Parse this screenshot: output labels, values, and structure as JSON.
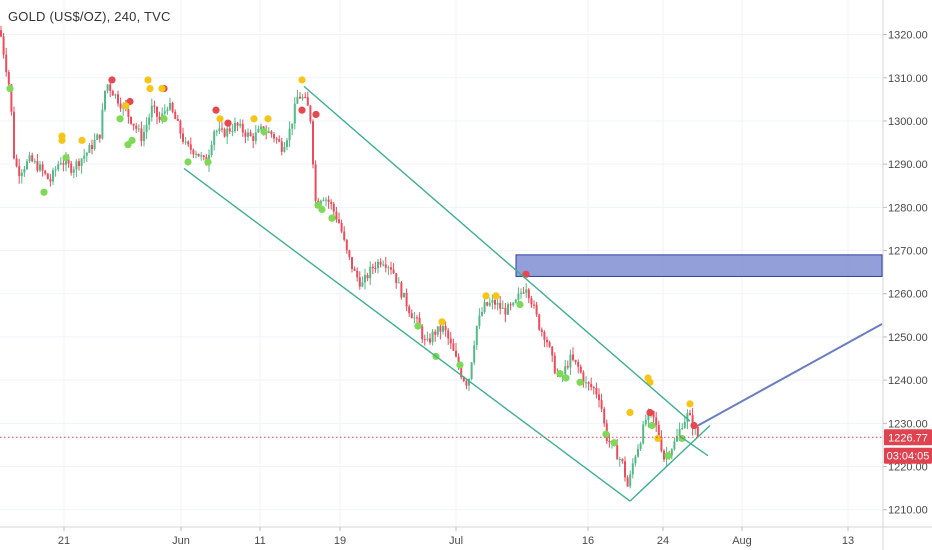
{
  "header": {
    "title": "GOLD (US$/OZ), 240, TVC"
  },
  "colors": {
    "up": "#53b987",
    "down": "#eb4d5c",
    "channel": "#3fb08f",
    "projection": "#6a7dc2",
    "zone_fill": "#7f8ed1",
    "zone_stroke": "#2f3f9f",
    "price_line": "#e0424f",
    "dot_green": "#7ed957",
    "dot_red": "#e5484d",
    "dot_yellow": "#f5c518",
    "grid": "#f0f3fa",
    "axis_text": "#4a4a4a"
  },
  "chart_data": {
    "type": "candlestick",
    "symbol": "GOLD (US$/OZ)",
    "interval": "240",
    "source": "TVC",
    "ylim": [
      1206,
      1328
    ],
    "y_ticks": [
      1210,
      1220,
      1230,
      1240,
      1250,
      1260,
      1270,
      1280,
      1290,
      1300,
      1310,
      1320
    ],
    "y_tick_labels": [
      "1210.00",
      "1220.00",
      "1230.00",
      "1240.00",
      "1250.00",
      "1260.00",
      "1270.00",
      "1280.00",
      "1290.00",
      "1300.00",
      "1310.00",
      "1320.00"
    ],
    "x_labels": [
      "21",
      "Jun",
      "11",
      "19",
      "Jul",
      "16",
      "24",
      "Aug",
      "13"
    ],
    "last_price": {
      "label": "1226.77",
      "value": 1226.77
    },
    "countdown": {
      "label": "03:04:05",
      "value": 1222.5
    },
    "price_path": [
      [
        0,
        1321
      ],
      [
        10,
        1307
      ],
      [
        14,
        1292
      ],
      [
        18,
        1288
      ],
      [
        30,
        1291
      ],
      [
        40,
        1289
      ],
      [
        50,
        1286
      ],
      [
        60,
        1291
      ],
      [
        72,
        1289
      ],
      [
        88,
        1293
      ],
      [
        100,
        1297
      ],
      [
        106,
        1309
      ],
      [
        118,
        1305
      ],
      [
        132,
        1300
      ],
      [
        142,
        1296
      ],
      [
        152,
        1303
      ],
      [
        160,
        1300
      ],
      [
        168,
        1304
      ],
      [
        176,
        1300
      ],
      [
        186,
        1294
      ],
      [
        196,
        1293
      ],
      [
        206,
        1290
      ],
      [
        214,
        1298
      ],
      [
        222,
        1297
      ],
      [
        236,
        1299
      ],
      [
        252,
        1296
      ],
      [
        262,
        1298
      ],
      [
        272,
        1297
      ],
      [
        282,
        1294
      ],
      [
        290,
        1298
      ],
      [
        298,
        1306
      ],
      [
        304,
        1305
      ],
      [
        310,
        1302
      ],
      [
        316,
        1280
      ],
      [
        322,
        1283
      ],
      [
        330,
        1281
      ],
      [
        340,
        1276
      ],
      [
        346,
        1270
      ],
      [
        354,
        1265
      ],
      [
        362,
        1262
      ],
      [
        372,
        1266
      ],
      [
        382,
        1268
      ],
      [
        392,
        1266
      ],
      [
        400,
        1261
      ],
      [
        410,
        1256
      ],
      [
        418,
        1253
      ],
      [
        426,
        1248
      ],
      [
        434,
        1251
      ],
      [
        444,
        1252
      ],
      [
        454,
        1246
      ],
      [
        462,
        1241
      ],
      [
        468,
        1239
      ],
      [
        476,
        1252
      ],
      [
        484,
        1257
      ],
      [
        494,
        1258
      ],
      [
        504,
        1256
      ],
      [
        514,
        1257
      ],
      [
        520,
        1260
      ],
      [
        526,
        1262
      ],
      [
        532,
        1258
      ],
      [
        540,
        1252
      ],
      [
        546,
        1250
      ],
      [
        554,
        1243
      ],
      [
        560,
        1240
      ],
      [
        570,
        1245
      ],
      [
        578,
        1243
      ],
      [
        586,
        1239
      ],
      [
        594,
        1238
      ],
      [
        600,
        1236
      ],
      [
        606,
        1227
      ],
      [
        614,
        1224
      ],
      [
        622,
        1221
      ],
      [
        628,
        1215
      ],
      [
        634,
        1222
      ],
      [
        640,
        1226
      ],
      [
        646,
        1231
      ],
      [
        652,
        1232
      ],
      [
        658,
        1228
      ],
      [
        664,
        1222
      ],
      [
        670,
        1224
      ],
      [
        676,
        1226
      ],
      [
        682,
        1230
      ],
      [
        688,
        1232
      ],
      [
        694,
        1229
      ],
      [
        698,
        1227
      ]
    ],
    "dots": {
      "green": [
        [
          10,
          1307.5
        ],
        [
          44,
          1283.5
        ],
        [
          66,
          1291.5
        ],
        [
          120,
          1300.5
        ],
        [
          128,
          1294.5
        ],
        [
          132,
          1295.5
        ],
        [
          164,
          1300.5
        ],
        [
          188,
          1290.5
        ],
        [
          208,
          1290.5
        ],
        [
          264,
          1297.5
        ],
        [
          318,
          1280.5
        ],
        [
          322,
          1279.5
        ],
        [
          332,
          1277.5
        ],
        [
          418,
          1252.5
        ],
        [
          436,
          1245.5
        ],
        [
          460,
          1243.5
        ],
        [
          520,
          1257.5
        ],
        [
          560,
          1241.5
        ],
        [
          566,
          1240.5
        ],
        [
          580,
          1239.5
        ],
        [
          606,
          1227.5
        ],
        [
          614,
          1225.5
        ],
        [
          652,
          1229.5
        ],
        [
          668,
          1222.5
        ],
        [
          682,
          1226.5
        ]
      ],
      "red": [
        [
          112,
          1309.5
        ],
        [
          130,
          1304.5
        ],
        [
          164,
          1307.5
        ],
        [
          216,
          1302.5
        ],
        [
          228,
          1299.5
        ],
        [
          302,
          1302.5
        ],
        [
          316,
          1301.5
        ],
        [
          526,
          1264.5
        ],
        [
          650,
          1232.5
        ],
        [
          694,
          1229.5
        ]
      ],
      "yellow": [
        [
          62,
          1295.5
        ],
        [
          62,
          1296.5
        ],
        [
          82,
          1295.5
        ],
        [
          126,
          1303.5
        ],
        [
          148,
          1309.5
        ],
        [
          150,
          1307.5
        ],
        [
          162,
          1307.5
        ],
        [
          220,
          1300.5
        ],
        [
          254,
          1300.5
        ],
        [
          268,
          1300.5
        ],
        [
          302,
          1309.5
        ],
        [
          442,
          1253.5
        ],
        [
          486,
          1259.5
        ],
        [
          496,
          1259.5
        ],
        [
          630,
          1232.5
        ],
        [
          648,
          1240.5
        ],
        [
          650,
          1239.5
        ],
        [
          658,
          1226.5
        ],
        [
          690,
          1234.5
        ]
      ]
    },
    "annotations": {
      "channel_upper": [
        [
          304,
          1308
        ],
        [
          690,
          1230.5
        ]
      ],
      "channel_lower": [
        [
          184,
          1289
        ],
        [
          630,
          1212
        ]
      ],
      "channel_base": [
        [
          630,
          1212
        ],
        [
          710,
          1229.5
        ]
      ],
      "channel_cut": [
        [
          680,
          1227
        ],
        [
          708,
          1222.5
        ]
      ],
      "projection": [
        [
          698,
          1229.5
        ],
        [
          882,
          1253
        ]
      ],
      "supply_zone": {
        "x_from": 516,
        "x_to": 882,
        "y_from": 1264,
        "y_to": 1269
      }
    }
  }
}
